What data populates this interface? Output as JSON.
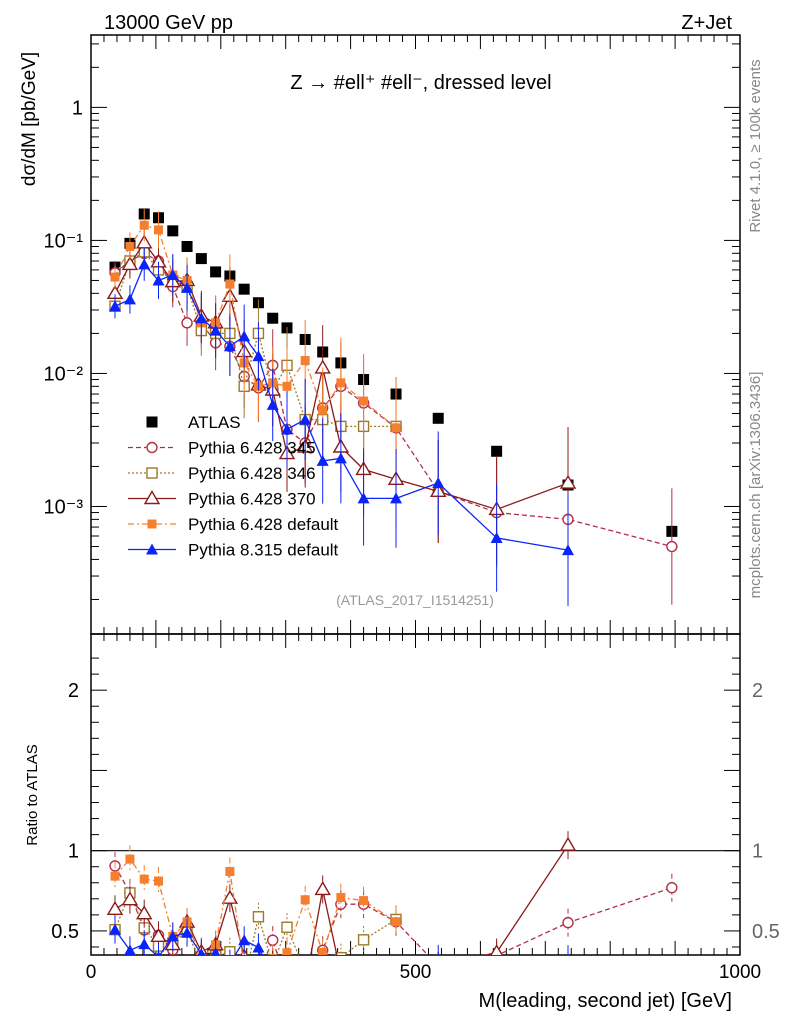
{
  "header": {
    "left": "13000 GeV pp",
    "right": "Z+Jet"
  },
  "side_labels": {
    "rivet": "Rivet 4.1.0, ≥ 100k events",
    "mcplots": "mcplots.cern.ch [arXiv:1306.3436]"
  },
  "chart_data": {
    "type": "scatter",
    "title": "Z → #ell⁺ #ell⁻, dressed level",
    "watermark": "(ATLAS_2017_I1514251)",
    "xlabel": "M(leading, second jet) [GeV]",
    "ylabel": "dσ/dM [pb/GeV]",
    "ratio_ylabel": "Ratio to ATLAS",
    "xlim": [
      0,
      1000
    ],
    "ylim": [
      0.00011,
      3.5
    ],
    "yscale": "log",
    "ratio_ylim": [
      0.35,
      2.35
    ],
    "x_ticks": [
      0,
      500,
      1000
    ],
    "y_tick_labels": [
      "1",
      "10⁻¹",
      "10⁻²",
      "10⁻³"
    ],
    "y_tick_values": [
      1,
      0.1,
      0.01,
      0.001
    ],
    "ratio_tick_values": [
      0.5,
      1,
      2
    ],
    "ratio_tick_labels": [
      "0.5",
      "1",
      "2"
    ],
    "legend_position": "middle-left",
    "series": [
      {
        "name": "ATLAS",
        "color": "#000000",
        "marker": "square-filled",
        "line": "none",
        "x": [
          37,
          60,
          82,
          104,
          126,
          148,
          170,
          192,
          214,
          236,
          258,
          280,
          302,
          330,
          357,
          385,
          420,
          470,
          535,
          625,
          735,
          895
        ],
        "y": [
          0.063,
          0.095,
          0.158,
          0.148,
          0.118,
          0.09,
          0.073,
          0.058,
          0.054,
          0.043,
          0.034,
          0.026,
          0.022,
          0.018,
          0.0145,
          0.012,
          0.009,
          0.007,
          0.0046,
          0.0026,
          0.00145,
          0.00065
        ]
      },
      {
        "name": "Pythia 6.428 345",
        "color": "#b0304a",
        "marker": "circle-open",
        "line": "dashed",
        "x": [
          37,
          60,
          82,
          104,
          126,
          148,
          170,
          192,
          214,
          236,
          258,
          280,
          302,
          330,
          357,
          385,
          420,
          470,
          535,
          625,
          735,
          895
        ],
        "y": [
          0.057,
          0.07,
          0.08,
          0.07,
          0.045,
          0.024,
          0.024,
          0.017,
          0.016,
          0.0095,
          0.0078,
          0.0115,
          0.0038,
          0.003,
          0.0055,
          0.008,
          0.006,
          0.0039,
          0.0013,
          0.0009,
          0.0008,
          0.0005
        ]
      },
      {
        "name": "Pythia 6.428 346",
        "color": "#9c7a2c",
        "marker": "square-open",
        "line": "dotted",
        "x": [
          37,
          60,
          82,
          104,
          126,
          148,
          170,
          192,
          214,
          236,
          258,
          280,
          302,
          330,
          357,
          385,
          420,
          470
        ],
        "y": [
          0.032,
          0.07,
          0.082,
          0.06,
          0.05,
          0.045,
          0.021,
          0.02,
          0.02,
          0.008,
          0.02,
          0.0075,
          0.0115,
          0.0045,
          0.0045,
          0.004,
          0.004,
          0.004
        ]
      },
      {
        "name": "Pythia 6.428 370",
        "color": "#8b1a1a",
        "marker": "triangle-open",
        "line": "solid",
        "x": [
          37,
          60,
          82,
          104,
          126,
          148,
          170,
          192,
          214,
          236,
          258,
          280,
          302,
          330,
          357,
          385,
          420,
          470,
          535,
          625,
          735
        ],
        "y": [
          0.04,
          0.066,
          0.096,
          0.069,
          0.049,
          0.05,
          0.027,
          0.024,
          0.038,
          0.0146,
          0.0082,
          0.0075,
          0.0025,
          0.0028,
          0.011,
          0.0028,
          0.0019,
          0.0016,
          0.0013,
          0.00095,
          0.0015
        ]
      },
      {
        "name": "Pythia 6.428 default",
        "color": "#f57f2f",
        "marker": "square-filled-small",
        "line": "dashdot",
        "x": [
          37,
          60,
          82,
          104,
          126,
          148,
          170,
          192,
          214,
          236,
          258,
          280,
          302,
          330,
          357,
          385,
          420,
          470
        ],
        "y": [
          0.053,
          0.09,
          0.13,
          0.12,
          0.055,
          0.05,
          0.024,
          0.024,
          0.047,
          0.012,
          0.008,
          0.0085,
          0.008,
          0.0125,
          0.0053,
          0.0085,
          0.0062,
          0.0039
        ]
      },
      {
        "name": "Pythia 8.315 default",
        "color": "#0b24fb",
        "marker": "triangle-filled",
        "line": "solid",
        "x": [
          37,
          60,
          82,
          104,
          126,
          148,
          170,
          192,
          214,
          236,
          258,
          280,
          302,
          330,
          357,
          385,
          420,
          470,
          535,
          625,
          735
        ],
        "y": [
          0.032,
          0.036,
          0.066,
          0.05,
          0.055,
          0.044,
          0.026,
          0.021,
          0.016,
          0.019,
          0.0135,
          0.0058,
          0.0038,
          0.0045,
          0.0022,
          0.0023,
          0.00115,
          0.00115,
          0.0015,
          0.00058,
          0.00047
        ]
      }
    ]
  }
}
